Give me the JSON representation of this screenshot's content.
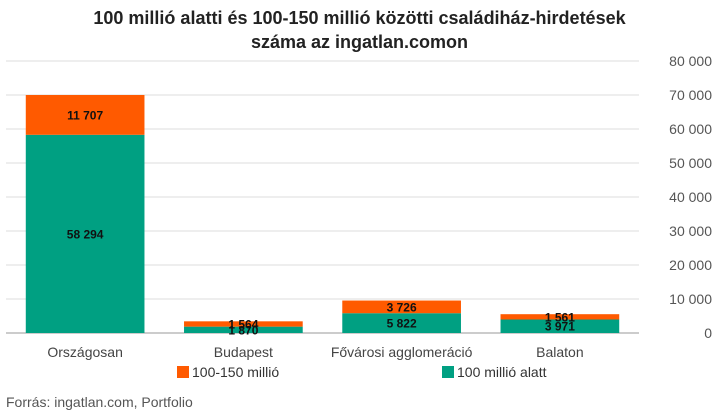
{
  "title_line1": "100 millió alatti és 100-150 millió közötti családiház-hirdetések",
  "title_line2": "száma az ingatlan.comon",
  "source": "Forrás: ingatlan.com, Portfolio",
  "legend": [
    {
      "label": "100-150 millió",
      "color": "#ff5a00"
    },
    {
      "label": "100 millió alatt",
      "color": "#00a082"
    }
  ],
  "chart_data": {
    "type": "bar",
    "stacked": true,
    "title": "100 millió alatti és 100-150 millió közötti családiház-hirdetések száma az ingatlan.comon",
    "categories": [
      "Országosan",
      "Budapest",
      "Fővárosi agglomeráció",
      "Balaton"
    ],
    "series": [
      {
        "name": "100 millió alatt",
        "color": "#00a082",
        "values": [
          58294,
          1870,
          5822,
          3971
        ],
        "labels": [
          "58 294",
          "1 870",
          "5 822",
          "3 971"
        ]
      },
      {
        "name": "100-150 millió",
        "color": "#ff5a00",
        "values": [
          11707,
          1564,
          3726,
          1561
        ],
        "labels": [
          "11 707",
          "1 564",
          "3 726",
          "1 561"
        ]
      }
    ],
    "ylim": [
      0,
      80000
    ],
    "yticks": [
      0,
      10000,
      20000,
      30000,
      40000,
      50000,
      60000,
      70000,
      80000
    ],
    "ytick_labels": [
      "0",
      "10 000",
      "20 000",
      "30 000",
      "40 000",
      "50 000",
      "60 000",
      "70 000",
      "80 000"
    ],
    "y_axis_position": "right",
    "grid": true,
    "legend_position": "bottom"
  }
}
